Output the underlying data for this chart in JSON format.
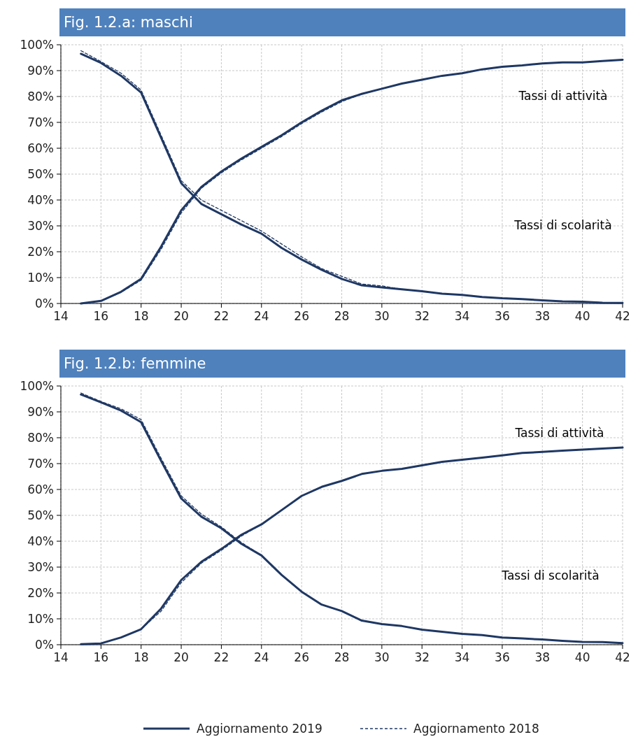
{
  "chart_data": [
    {
      "type": "line",
      "title": "Fig. 1.2.a: maschi",
      "x": [
        15,
        16,
        17,
        18,
        19,
        20,
        21,
        22,
        23,
        24,
        25,
        26,
        27,
        28,
        29,
        30,
        31,
        32,
        33,
        34,
        35,
        36,
        37,
        38,
        39,
        40,
        41,
        42
      ],
      "series": [
        {
          "color": "#1f3864",
          "line_style": "solid",
          "values": [
            0,
            1,
            4.5,
            9.5,
            22,
            36,
            45,
            51,
            56,
            60.5,
            65,
            70,
            74.5,
            78.5,
            81,
            83,
            85,
            86.5,
            88,
            89,
            90.5,
            91.5,
            92,
            92.8,
            93.2,
            93.2,
            93.7,
            94.2
          ]
        },
        {
          "color": "#1f3864",
          "line_style": "dashed",
          "values": [
            0,
            1,
            4.3,
            9,
            21,
            35,
            44.5,
            50.5,
            55.5,
            60,
            64.5,
            69.5,
            74,
            78,
            81,
            83,
            85,
            86.5,
            88,
            89,
            90.5,
            91.5,
            92,
            92.8,
            93.2,
            93.2,
            93.7,
            94.2
          ]
        },
        {
          "color": "#1f3864",
          "line_style": "solid",
          "values": [
            96.5,
            93,
            88,
            81.5,
            64,
            46.5,
            38.5,
            34.5,
            30.5,
            27,
            21.5,
            17,
            13,
            9.5,
            7,
            6.2,
            5.5,
            4.7,
            3.8,
            3.3,
            2.5,
            2,
            1.7,
            1.2,
            0.8,
            0.7,
            0.3,
            0.2
          ]
        },
        {
          "color": "#1f3864",
          "line_style": "dashed",
          "values": [
            97.7,
            93.5,
            89,
            82.5,
            65,
            47.5,
            40,
            36,
            32,
            28,
            23,
            18,
            13.5,
            10.5,
            7.5,
            6.8,
            5.5,
            4.7,
            3.8,
            3.3,
            2.5,
            2,
            1.7,
            1.2,
            0.8,
            0.7,
            0.3,
            0.2
          ]
        }
      ],
      "xlim": [
        14,
        42
      ],
      "xticks": [
        14,
        16,
        18,
        20,
        22,
        24,
        26,
        28,
        30,
        32,
        34,
        36,
        38,
        40,
        42
      ],
      "ylim": [
        0,
        100
      ],
      "yticks": [
        {
          "value": 0,
          "label": "0%"
        },
        {
          "value": 10,
          "label": "10%"
        },
        {
          "value": 20,
          "label": "20%"
        },
        {
          "value": 30,
          "label": "30%"
        },
        {
          "value": 40,
          "label": "40%"
        },
        {
          "value": 50,
          "label": "50%"
        },
        {
          "value": 60,
          "label": "60%"
        },
        {
          "value": 70,
          "label": "70%"
        },
        {
          "value": 80,
          "label": "80%"
        },
        {
          "value": 90,
          "label": "90%"
        },
        {
          "value": 100,
          "label": "100%"
        }
      ],
      "grid": true,
      "annotations": [
        "Tassi di attività",
        "Tassi di scolarità"
      ]
    },
    {
      "type": "line",
      "title": "Fig. 1.2.b: femmine",
      "x": [
        15,
        16,
        17,
        18,
        19,
        20,
        21,
        22,
        23,
        24,
        25,
        26,
        27,
        28,
        29,
        30,
        31,
        32,
        33,
        34,
        35,
        36,
        37,
        38,
        39,
        40,
        41,
        42
      ],
      "series": [
        {
          "name": "Aggiornamento 2019",
          "color": "#1f3864",
          "line_style": "solid",
          "values": [
            0.2,
            0.5,
            2.8,
            6,
            14,
            25,
            32,
            37,
            42.5,
            46.5,
            52,
            57.5,
            61,
            63.3,
            66,
            67.2,
            68,
            69.3,
            70.7,
            71.5,
            72.3,
            73.2,
            74.1,
            74.5,
            75,
            75.4,
            75.8,
            76.2
          ]
        },
        {
          "name": "Aggiornamento 2018",
          "color": "#1f3864",
          "line_style": "dashed",
          "values": [
            0.2,
            0.5,
            2.8,
            6,
            13,
            24,
            31.5,
            36.5,
            42,
            46.5,
            52,
            57.5,
            61,
            63.3,
            66,
            67.2,
            68,
            69.3,
            70.7,
            71.5,
            72.3,
            73.2,
            74.1,
            74.5,
            75,
            75.4,
            75.8,
            76.2
          ]
        },
        {
          "color": "#1f3864",
          "line_style": "solid",
          "values": [
            96.7,
            93.7,
            90.5,
            86,
            71,
            56.5,
            49.5,
            45,
            39,
            34.5,
            27,
            20.5,
            15.5,
            13,
            9.3,
            8,
            7.2,
            5.8,
            5,
            4.2,
            3.7,
            2.8,
            2.4,
            2,
            1.5,
            1.1,
            1,
            0.6
          ]
        },
        {
          "color": "#1f3864",
          "line_style": "dashed",
          "values": [
            97.3,
            94,
            91.2,
            87,
            72,
            57.5,
            50.5,
            45.5,
            39.5,
            34.5,
            27,
            20.5,
            15.5,
            13,
            9.3,
            8,
            7.2,
            5.8,
            5,
            4.2,
            3.7,
            2.8,
            2.4,
            2,
            1.5,
            1.1,
            1,
            0.6
          ]
        }
      ],
      "xlim": [
        14,
        42
      ],
      "xticks": [
        14,
        16,
        18,
        20,
        22,
        24,
        26,
        28,
        30,
        32,
        34,
        36,
        38,
        40,
        42
      ],
      "ylim": [
        0,
        100
      ],
      "yticks": [
        {
          "value": 0,
          "label": "0%"
        },
        {
          "value": 10,
          "label": "10%"
        },
        {
          "value": 20,
          "label": "20%"
        },
        {
          "value": 30,
          "label": "30%"
        },
        {
          "value": 40,
          "label": "40%"
        },
        {
          "value": 50,
          "label": "50%"
        },
        {
          "value": 60,
          "label": "60%"
        },
        {
          "value": 70,
          "label": "70%"
        },
        {
          "value": 80,
          "label": "80%"
        },
        {
          "value": 90,
          "label": "90%"
        },
        {
          "value": 100,
          "label": "100%"
        }
      ],
      "grid": true,
      "legend": "bottom",
      "annotations": [
        "Tassi di attività",
        "Tassi di scolarità"
      ]
    }
  ]
}
